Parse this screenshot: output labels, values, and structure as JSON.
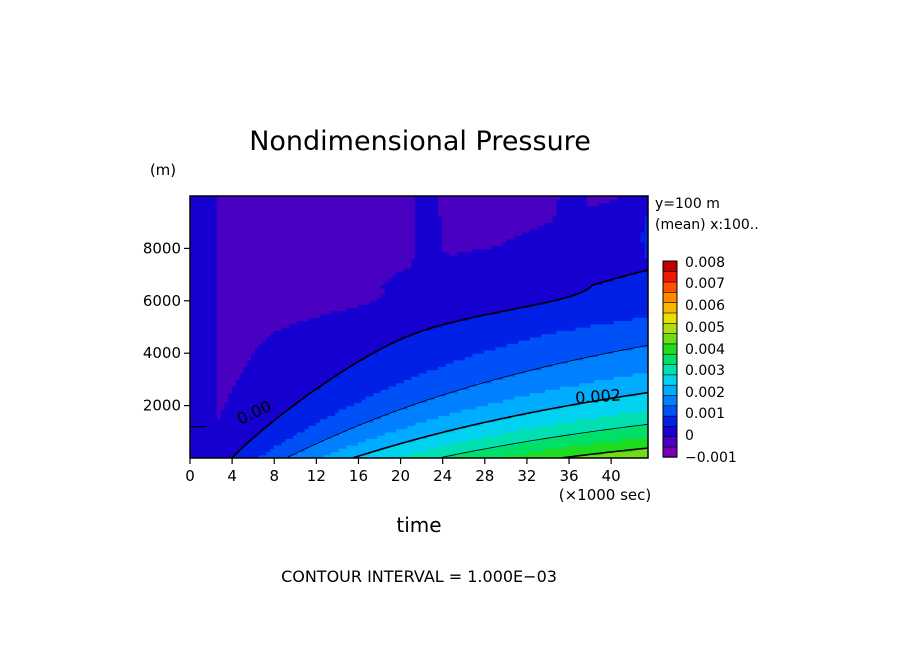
{
  "chart_data": {
    "type": "heatmap",
    "title": "Nondimensional Pressure",
    "xlabel": "time",
    "x_unit": "(×1000 sec)",
    "y_unit": "(m)",
    "x_ticks": [
      0,
      4,
      8,
      12,
      16,
      20,
      24,
      28,
      32,
      36,
      40
    ],
    "y_ticks": [
      2000,
      4000,
      6000,
      8000
    ],
    "xlim": [
      0,
      43.5
    ],
    "ylim": [
      0,
      10000
    ],
    "side_notes": [
      "y=100 m",
      "(mean) x:100.."
    ],
    "colorbar": {
      "levels": [
        -0.001,
        0,
        0.001,
        0.002,
        0.003,
        0.004,
        0.005,
        0.006,
        0.007,
        0.008
      ],
      "tick_labels": [
        "0.008",
        "0.007",
        "0.006",
        "0.005",
        "0.004",
        "0.003",
        "0.002",
        "0.001",
        "0",
        "−0.001"
      ]
    },
    "contour_labels": [
      {
        "text": "0.00",
        "value": 0.0
      },
      {
        "text": "0.002",
        "value": 0.002
      }
    ],
    "contour_interval_text": "CONTOUR INTERVAL = 1.000E−03"
  }
}
